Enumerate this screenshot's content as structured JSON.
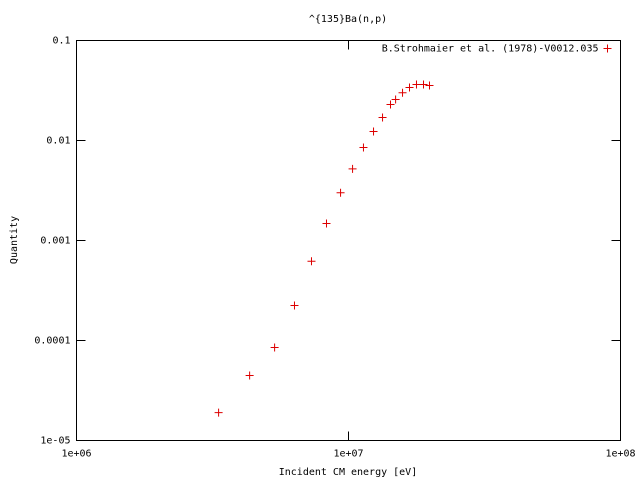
{
  "chart_data": {
    "type": "scatter",
    "title": "^{135}Ba(n,p)",
    "x_label": "Incident CM energy [eV]",
    "y_label": "Quantity",
    "x_log": true,
    "y_log": true,
    "legend_position": "top-right",
    "xlim": [
      1000000,
      100000000
    ],
    "xticks": [
      {
        "value": 1000000,
        "label": "1e+06"
      },
      {
        "value": 10000000,
        "label": "1e+07"
      },
      {
        "value": 100000000,
        "label": "1e+08"
      }
    ],
    "ylim": [
      1e-05,
      0.1
    ],
    "yticks": [
      {
        "value": 1e-05,
        "label": "1e-05"
      },
      0.0001,
      0.001,
      0.01,
      0.1
    ],
    "series": [
      {
        "name": "B.Strohmaier et al. (1978)-V0012.035",
        "color": "#dd0000",
        "x": [
          3330000,
          4330000,
          5350000,
          6330000,
          7310000,
          8300000,
          9350000,
          10350000,
          11350000,
          12360000,
          13340000,
          14270000,
          14900000,
          15800000,
          16760000,
          17780000,
          18870000,
          19850000
        ],
        "values": [
          1.9e-05,
          4.47e-05,
          8.5e-05,
          0.000224,
          0.00062,
          0.00148,
          0.003,
          0.0052,
          0.0085,
          0.0123,
          0.017,
          0.0229,
          0.0257,
          0.03,
          0.0339,
          0.0363,
          0.0363,
          0.0355
        ]
      }
    ]
  }
}
